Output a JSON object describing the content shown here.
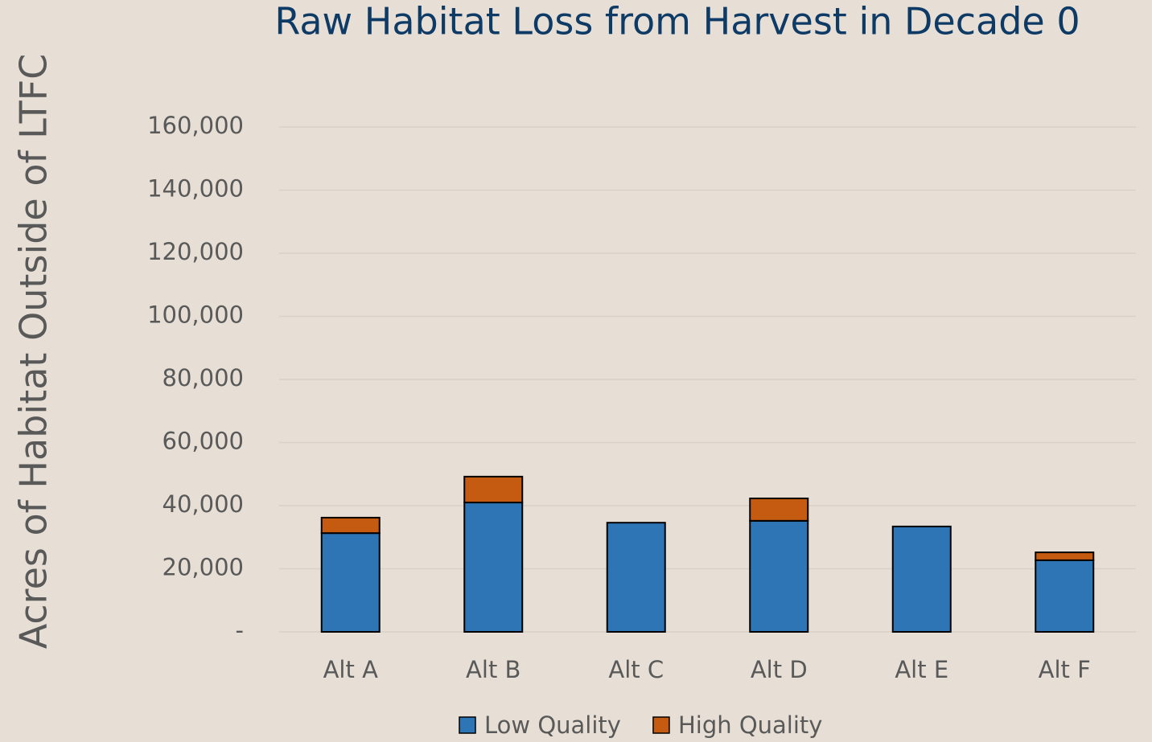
{
  "chart_data": {
    "type": "stacked_bar",
    "title": "Raw Habitat Loss from Harvest in Decade 0",
    "y_label": "Acres of Habitat Outside of LTFC",
    "categories": [
      "Alt A",
      "Alt B",
      "Alt C",
      "Alt D",
      "Alt E",
      "Alt F"
    ],
    "series": [
      {
        "name": "Low Quality",
        "color": "#2e75b6",
        "values": [
          31300,
          41000,
          34600,
          35200,
          33400,
          22700
        ]
      },
      {
        "name": "High Quality",
        "color": "#c55a11",
        "values": [
          4900,
          8200,
          0,
          7100,
          0,
          2500
        ]
      }
    ],
    "ylim": [
      0,
      160000
    ],
    "yticks": [
      {
        "value": 0,
        "label": "-"
      },
      {
        "value": 20000,
        "label": "20,000"
      },
      {
        "value": 40000,
        "label": "40,000"
      },
      {
        "value": 60000,
        "label": "60,000"
      },
      {
        "value": 80000,
        "label": "80,000"
      },
      {
        "value": 100000,
        "label": "100,000"
      },
      {
        "value": 120000,
        "label": "120,000"
      },
      {
        "value": 140000,
        "label": "140,000"
      },
      {
        "value": 160000,
        "label": "160,000"
      }
    ],
    "grid": true
  }
}
